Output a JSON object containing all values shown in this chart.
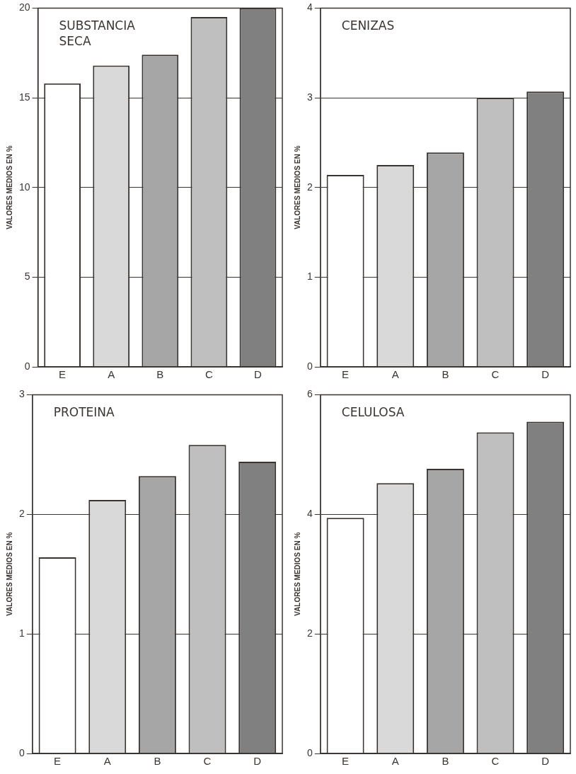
{
  "chart_data": [
    {
      "type": "bar",
      "title": "SUBSTANCIA\nSECA",
      "ylabel": "VALORES MEDIOS EN %",
      "categories": [
        "E",
        "A",
        "B",
        "C",
        "D"
      ],
      "values": [
        15.8,
        16.8,
        17.4,
        19.5,
        20
      ],
      "colors": [
        "#ffffff",
        "#d9d9d9",
        "#a6a6a6",
        "#bfbfbf",
        "#808080"
      ],
      "ylim": [
        0,
        20
      ],
      "yticks": [
        0,
        5,
        10,
        15,
        20
      ],
      "grid": "y",
      "legend": false
    },
    {
      "type": "bar",
      "title": "CENIZAS",
      "ylabel": "VALORES MEDIOS EN %",
      "categories": [
        "E",
        "A",
        "B",
        "C",
        "D"
      ],
      "values": [
        2.14,
        2.25,
        2.39,
        3.0,
        3.07
      ],
      "colors": [
        "#ffffff",
        "#d9d9d9",
        "#a6a6a6",
        "#bfbfbf",
        "#808080"
      ],
      "ylim": [
        0,
        4
      ],
      "yticks": [
        0,
        1,
        2,
        3,
        4
      ],
      "grid": "y",
      "legend": false
    },
    {
      "type": "bar",
      "title": "PROTEINA",
      "ylabel": "VALORES MEDIOS EN %",
      "categories": [
        "E",
        "A",
        "B",
        "C",
        "D"
      ],
      "values": [
        1.64,
        2.12,
        2.32,
        2.58,
        2.44
      ],
      "colors": [
        "#ffffff",
        "#d9d9d9",
        "#a6a6a6",
        "#bfbfbf",
        "#808080"
      ],
      "ylim": [
        0,
        3
      ],
      "yticks": [
        0,
        1,
        2,
        3
      ],
      "grid": "y",
      "legend": false
    },
    {
      "type": "bar",
      "title": "CELULOSA",
      "ylabel": "VALORES MEDIOS EN %",
      "categories": [
        "E",
        "A",
        "B",
        "C",
        "D"
      ],
      "values": [
        3.94,
        4.52,
        4.76,
        5.37,
        5.55
      ],
      "colors": [
        "#ffffff",
        "#d9d9d9",
        "#a6a6a6",
        "#bfbfbf",
        "#808080"
      ],
      "ylim": [
        0,
        6
      ],
      "yticks": [
        0,
        2,
        4,
        6
      ],
      "grid": "y",
      "legend": false
    }
  ]
}
